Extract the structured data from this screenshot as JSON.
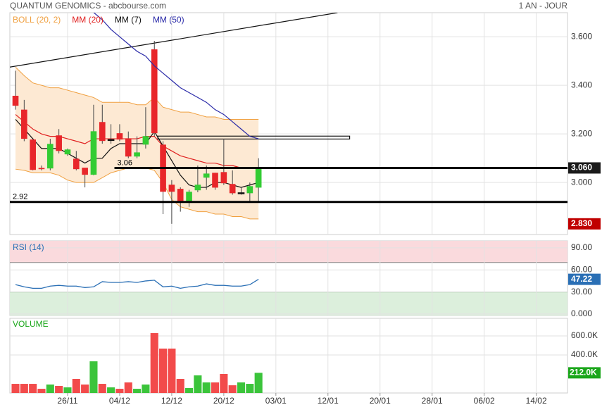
{
  "header": {
    "title": "QUANTUM GENOMICS - abcbourse.com",
    "period": "1 AN - JOUR"
  },
  "chart_data": [
    {
      "type": "candlestick",
      "open": [
        3.357,
        3.3,
        3.177,
        3.06,
        3.058,
        3.194,
        3.116,
        3.098,
        3.061,
        3.032,
        3.249,
        3.177,
        3.203,
        3.182,
        3.107,
        3.156,
        3.548,
        3.156,
        2.991,
        2.974,
        2.924,
        2.968,
        3.02,
        3.04,
        3.043,
        2.994,
        2.958,
        2.956,
        2.979
      ],
      "high": [
        3.46,
        3.34,
        3.18,
        3.07,
        3.18,
        3.22,
        3.14,
        3.13,
        3.06,
        3.32,
        3.32,
        3.24,
        3.24,
        3.21,
        3.19,
        3.31,
        3.583,
        3.17,
        3.01,
        2.98,
        2.97,
        3.07,
        3.07,
        3.04,
        3.18,
        3.05,
        2.98,
        3.0,
        3.1
      ],
      "low": [
        3.3,
        3.17,
        3.05,
        3.05,
        3.05,
        3.12,
        3.11,
        3.05,
        2.98,
        3.03,
        3.16,
        3.16,
        3.17,
        3.1,
        3.1,
        3.14,
        3.19,
        2.87,
        2.83,
        2.88,
        2.9,
        2.96,
        2.97,
        2.97,
        2.99,
        2.95,
        2.95,
        2.92,
        2.92
      ],
      "close": [
        3.316,
        3.18,
        3.052,
        3.055,
        3.159,
        3.13,
        3.136,
        3.055,
        3.032,
        3.211,
        3.171,
        3.177,
        3.177,
        3.107,
        3.124,
        3.191,
        3.203,
        2.962,
        2.962,
        2.924,
        2.962,
        2.991,
        3.037,
        2.979,
        2.997,
        2.956,
        2.958,
        2.985,
        3.06
      ],
      "up_color": "#33cc33",
      "down_color": "#e8262a",
      "bands": {
        "name": "BOLL (20, 2)",
        "color": "#f0a040",
        "fill": "#fde9d3",
        "upper": [
          3.475,
          3.44,
          3.41,
          3.4,
          3.39,
          3.39,
          3.38,
          3.37,
          3.36,
          3.35,
          3.33,
          3.33,
          3.33,
          3.33,
          3.32,
          3.32,
          3.35,
          3.31,
          3.3,
          3.29,
          3.29,
          3.28,
          3.27,
          3.27,
          3.26,
          3.26,
          3.26,
          3.26,
          3.26
        ],
        "lower": [
          3.055,
          3.05,
          3.04,
          3.04,
          3.04,
          3.03,
          3.01,
          3.0,
          3.0,
          3.0,
          3.02,
          3.04,
          3.05,
          3.06,
          3.06,
          3.06,
          3.05,
          3.0,
          2.93,
          2.9,
          2.89,
          2.88,
          2.88,
          2.87,
          2.87,
          2.86,
          2.86,
          2.85,
          2.85
        ]
      },
      "series": [
        {
          "name": "MM (20)",
          "color": "#e02020",
          "values": [
            3.28,
            3.25,
            3.22,
            3.2,
            3.19,
            3.19,
            3.18,
            3.17,
            3.16,
            3.18,
            3.18,
            3.18,
            3.18,
            3.18,
            3.18,
            3.19,
            3.19,
            3.15,
            3.13,
            3.11,
            3.1,
            3.09,
            3.08,
            3.08,
            3.07,
            3.07,
            3.06,
            3.06,
            3.06
          ]
        },
        {
          "name": "MM (7)",
          "color": "#111111",
          "values": [
            3.26,
            3.22,
            3.18,
            3.14,
            3.14,
            3.14,
            3.12,
            3.1,
            3.08,
            3.1,
            3.1,
            3.14,
            3.16,
            3.16,
            3.16,
            3.16,
            3.21,
            3.15,
            3.09,
            3.03,
            2.99,
            2.98,
            2.98,
            3.0,
            3.0,
            2.99,
            2.98,
            2.99,
            3.0
          ]
        },
        {
          "name": "MM (50)",
          "color": "#2a2aa8",
          "values": [
            null,
            null,
            null,
            null,
            null,
            null,
            null,
            null,
            null,
            3.7,
            3.67,
            3.63,
            3.6,
            3.57,
            3.54,
            3.52,
            3.48,
            3.45,
            3.42,
            3.39,
            3.37,
            3.35,
            3.33,
            3.3,
            3.28,
            3.25,
            3.22,
            3.19,
            3.18
          ]
        }
      ],
      "levels": [
        {
          "value": 3.06,
          "label": "3.06"
        },
        {
          "value": 2.92,
          "label": "2.92"
        }
      ],
      "trend_lines": [
        {
          "x": [
            -0.65,
            37.1
          ],
          "y": [
            3.475,
            3.699
          ]
        }
      ],
      "boxes": [
        {
          "x": [
            16.4,
            38.5
          ],
          "y": [
            3.179,
            3.191
          ]
        }
      ],
      "last_label": "3.060",
      "low_label": "2.830",
      "low_color": "#c00000",
      "ylim": [
        2.786,
        3.699
      ],
      "yticks": [
        {
          "value": 3.0,
          "label": "3.000"
        },
        {
          "value": 3.2,
          "label": "3.200"
        },
        {
          "value": 3.4,
          "label": "3.400"
        },
        {
          "value": 3.6,
          "label": "3.600"
        }
      ],
      "grid": true
    },
    {
      "type": "line",
      "title": "RSI (14)",
      "color": "#2a6fb5",
      "values": [
        40,
        37,
        35,
        35,
        38,
        39,
        38,
        38,
        36,
        37,
        44,
        43,
        43,
        44,
        43,
        45,
        46,
        37,
        38,
        35,
        37,
        38,
        41,
        39,
        39,
        38,
        38,
        40,
        47.22
      ],
      "zones": [
        {
          "above": 70,
          "color": "#fadadd"
        },
        {
          "below": 30,
          "color": "#dcefdc"
        }
      ],
      "ylim": [
        -2,
        99.5
      ],
      "yticks": [
        {
          "value": 0,
          "label": "0.000"
        },
        {
          "value": 30,
          "label": "30.00"
        },
        {
          "value": 60,
          "label": "60.00"
        },
        {
          "value": 90,
          "label": "90.00"
        }
      ],
      "grid": true
    },
    {
      "type": "bar",
      "title": "VOLUME",
      "values": [
        96,
        96,
        96,
        44,
        89,
        74,
        59,
        148,
        89,
        333,
        96,
        59,
        44,
        111,
        44,
        89,
        630,
        467,
        467,
        148,
        52,
        185,
        111,
        111,
        200,
        81,
        111,
        96,
        212
      ],
      "last_label": "212.0K",
      "label_color": "#1aa61a",
      "ylim": [
        0,
        785
      ],
      "yticks": [
        {
          "value": 400,
          "label": "400.0K"
        },
        {
          "value": 600,
          "label": "600.0K"
        }
      ],
      "xlim": [
        -0.65,
        63.6
      ],
      "xticks": [
        {
          "value": 6,
          "label": "26/11"
        },
        {
          "value": 12,
          "label": "04/12"
        },
        {
          "value": 18,
          "label": "12/12"
        },
        {
          "value": 24,
          "label": "20/12"
        },
        {
          "value": 30,
          "label": "03/01"
        },
        {
          "value": 36,
          "label": "12/01"
        },
        {
          "value": 42,
          "label": "20/01"
        },
        {
          "value": 48,
          "label": "28/01"
        },
        {
          "value": 54,
          "label": "06/02"
        },
        {
          "value": 60,
          "label": "14/02"
        }
      ],
      "grid": true
    }
  ]
}
